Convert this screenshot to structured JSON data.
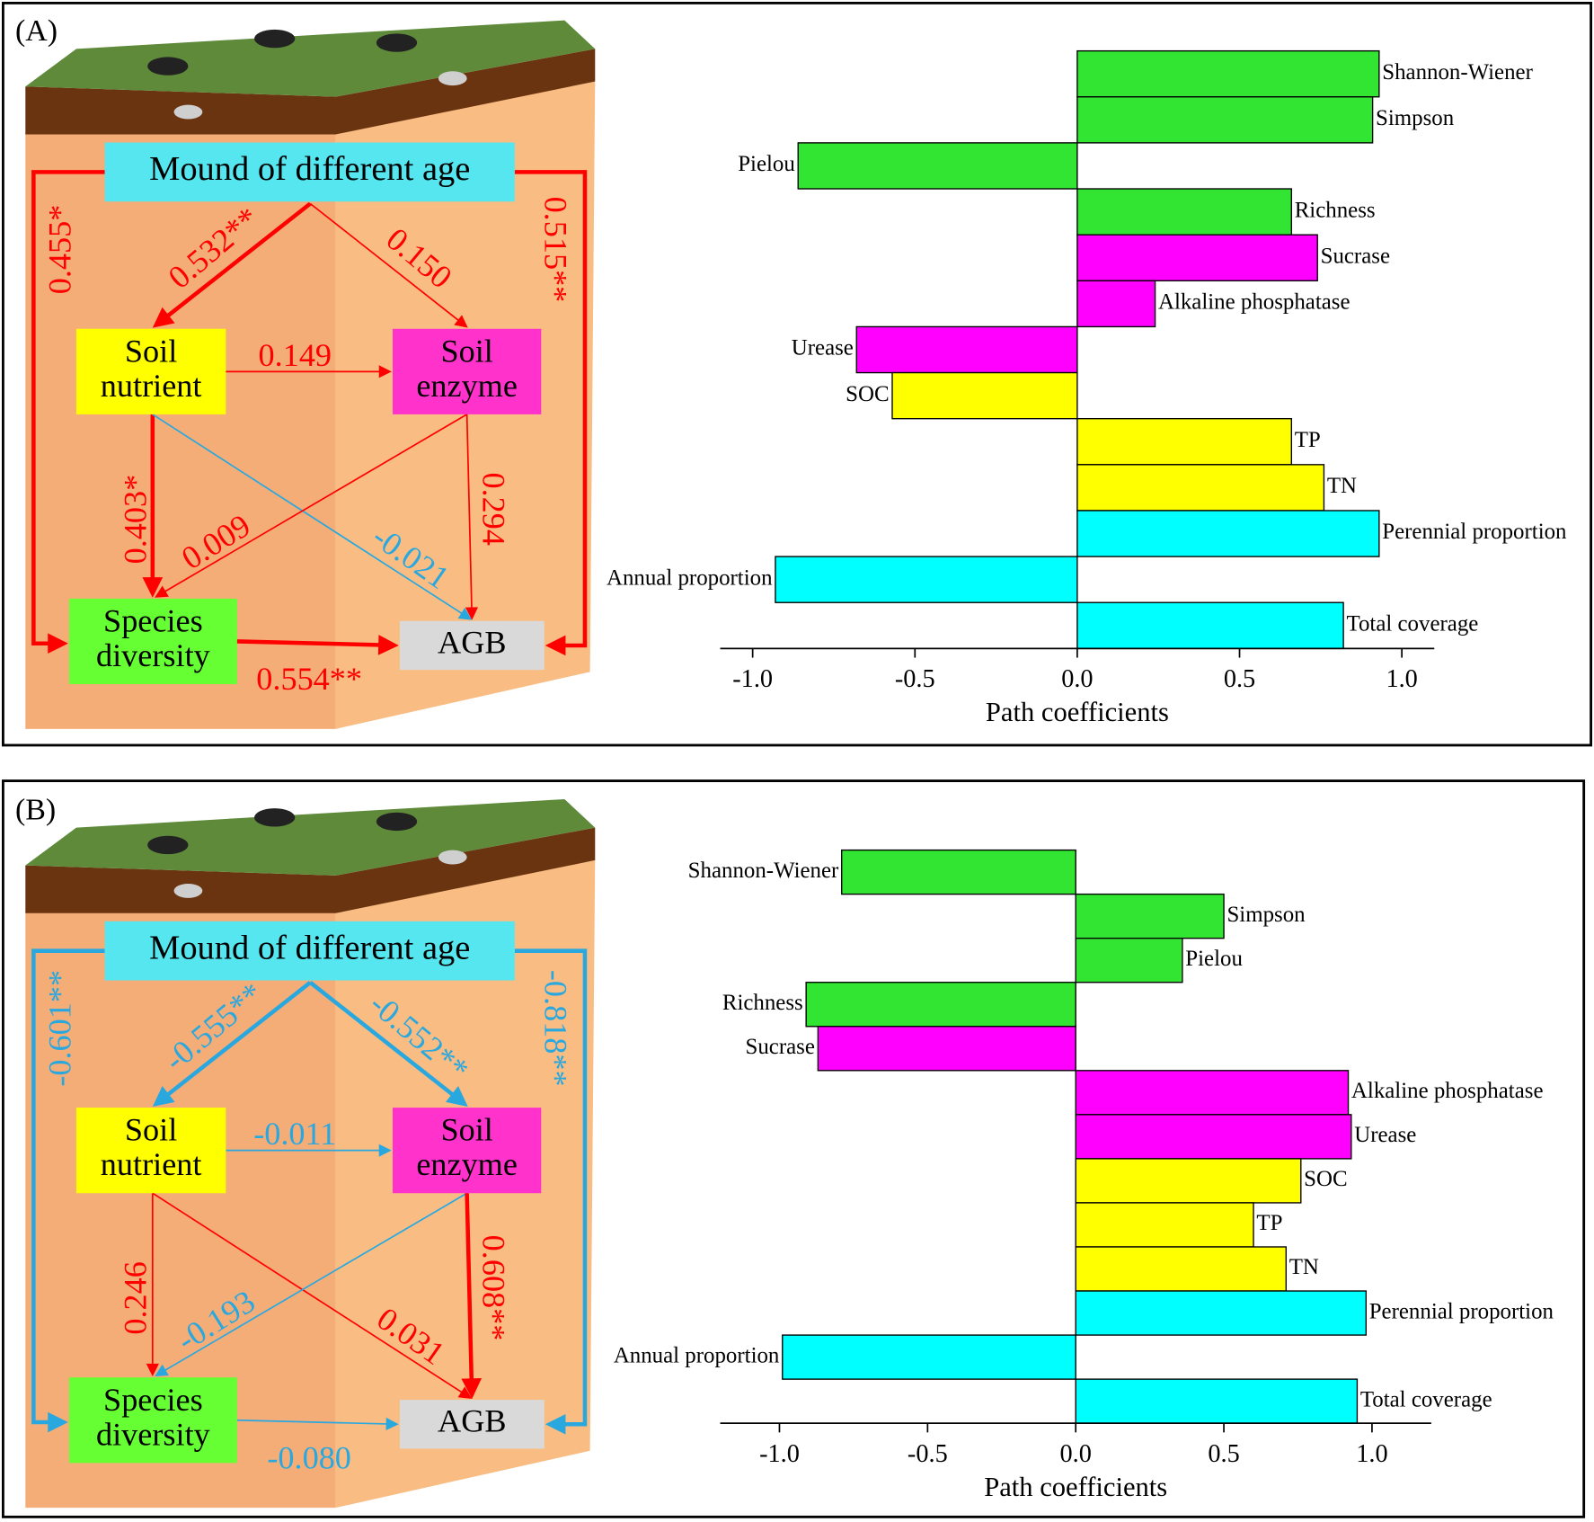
{
  "panels": [
    {
      "label": "(A)",
      "nodes": [
        {
          "lines": [
            "Mound of different age"
          ],
          "color": "#55e6f0"
        },
        {
          "lines": [
            "Soil",
            "nutrient"
          ],
          "color": "#ffff00"
        },
        {
          "lines": [
            "Soil",
            "enzyme"
          ],
          "color": "#ff33cc"
        },
        {
          "lines": [
            "Species",
            "diversity"
          ],
          "color": "#66ff33"
        },
        {
          "lines": [
            "AGB"
          ],
          "color": "#d9d9d9"
        }
      ],
      "edges": [
        {
          "from": 0,
          "to": 1,
          "label": "0.532**",
          "color": "#ff0000"
        },
        {
          "from": 0,
          "to": 2,
          "label": "0.150",
          "color": "#ff0000"
        },
        {
          "from": 1,
          "to": 2,
          "label": "0.149",
          "color": "#ff0000"
        },
        {
          "from": 1,
          "to": 3,
          "label": "0.403*",
          "color": "#ff0000"
        },
        {
          "from": 1,
          "to": 4,
          "label": "-0.021",
          "color": "#29a8e0"
        },
        {
          "from": 2,
          "to": 3,
          "label": "0.009",
          "color": "#ff0000"
        },
        {
          "from": 2,
          "to": 4,
          "label": "0.294",
          "color": "#ff0000"
        },
        {
          "from": 3,
          "to": 4,
          "label": "0.554**",
          "color": "#ff0000"
        },
        {
          "from": 0,
          "to": 3,
          "label": "0.455*",
          "color": "#ff0000"
        },
        {
          "from": 0,
          "to": 4,
          "label": "0.515**",
          "color": "#ff0000"
        }
      ]
    },
    {
      "label": "(B)",
      "nodes": [
        {
          "lines": [
            "Mound of different age"
          ],
          "color": "#55e6f0"
        },
        {
          "lines": [
            "Soil",
            "nutrient"
          ],
          "color": "#ffff00"
        },
        {
          "lines": [
            "Soil",
            "enzyme"
          ],
          "color": "#ff33cc"
        },
        {
          "lines": [
            "Species",
            "diversity"
          ],
          "color": "#66ff33"
        },
        {
          "lines": [
            "AGB"
          ],
          "color": "#d9d9d9"
        }
      ],
      "edges": [
        {
          "from": 0,
          "to": 1,
          "label": "-0.555**",
          "color": "#29a8e0"
        },
        {
          "from": 0,
          "to": 2,
          "label": "-0.552**",
          "color": "#29a8e0"
        },
        {
          "from": 1,
          "to": 2,
          "label": "-0.011",
          "color": "#29a8e0"
        },
        {
          "from": 1,
          "to": 3,
          "label": "0.246",
          "color": "#ff0000"
        },
        {
          "from": 1,
          "to": 4,
          "label": "0.031",
          "color": "#ff0000"
        },
        {
          "from": 2,
          "to": 3,
          "label": "-0.193",
          "color": "#29a8e0"
        },
        {
          "from": 2,
          "to": 4,
          "label": "0.608**",
          "color": "#ff0000"
        },
        {
          "from": 3,
          "to": 4,
          "label": "-0.080",
          "color": "#29a8e0"
        },
        {
          "from": 0,
          "to": 3,
          "label": "-0.601**",
          "color": "#29a8e0"
        },
        {
          "from": 0,
          "to": 4,
          "label": "-0.818**",
          "color": "#29a8e0"
        }
      ]
    }
  ],
  "chart_data": [
    {
      "type": "bar",
      "orientation": "horizontal",
      "categories": [
        "Shannon-Wiener",
        "Simpson",
        "Pielou",
        "Richness",
        "Sucrase",
        "Alkaline phosphatase",
        "Urease",
        "SOC",
        "TP",
        "TN",
        "Perennial proportion",
        "Annual proportion",
        "Total coverage"
      ],
      "values": [
        0.93,
        0.91,
        -0.86,
        0.66,
        0.74,
        0.24,
        -0.68,
        -0.57,
        0.66,
        0.76,
        0.93,
        -0.93,
        0.82
      ],
      "colors": [
        "#33e533",
        "#33e533",
        "#33e533",
        "#33e533",
        "#ff00ff",
        "#ff00ff",
        "#ff00ff",
        "#ffff00",
        "#ffff00",
        "#ffff00",
        "#00ffff",
        "#00ffff",
        "#00ffff"
      ],
      "xlim": [
        -1.1,
        1.1
      ],
      "xticks": [
        {
          "value": -1,
          "label": "-1.0"
        },
        -0.5,
        {
          "value": 0,
          "label": "0.0"
        },
        0.5,
        {
          "value": 1,
          "label": "1.0"
        }
      ],
      "xlabel": "Path coefficients"
    },
    {
      "type": "bar",
      "orientation": "horizontal",
      "categories": [
        "Shannon-Wiener",
        "Simpson",
        "Pielou",
        "Richness",
        "Sucrase",
        "Alkaline phosphatase",
        "Urease",
        "SOC",
        "TP",
        "TN",
        "Perennial proportion",
        "Annual proportion",
        "Total coverage"
      ],
      "values": [
        -0.79,
        0.5,
        0.36,
        -0.91,
        -0.87,
        0.92,
        0.93,
        0.76,
        0.6,
        0.71,
        0.98,
        -0.99,
        0.95
      ],
      "colors": [
        "#33e533",
        "#33e533",
        "#33e533",
        "#33e533",
        "#ff00ff",
        "#ff00ff",
        "#ff00ff",
        "#ffff00",
        "#ffff00",
        "#ffff00",
        "#00ffff",
        "#00ffff",
        "#00ffff"
      ],
      "xlim": [
        -1.2,
        1.2
      ],
      "xticks": [
        {
          "value": -1,
          "label": "-1.0"
        },
        -0.5,
        {
          "value": 0,
          "label": "0.0"
        },
        0.5,
        {
          "value": 1,
          "label": "1.0"
        }
      ],
      "xlabel": "Path coefficients"
    }
  ]
}
